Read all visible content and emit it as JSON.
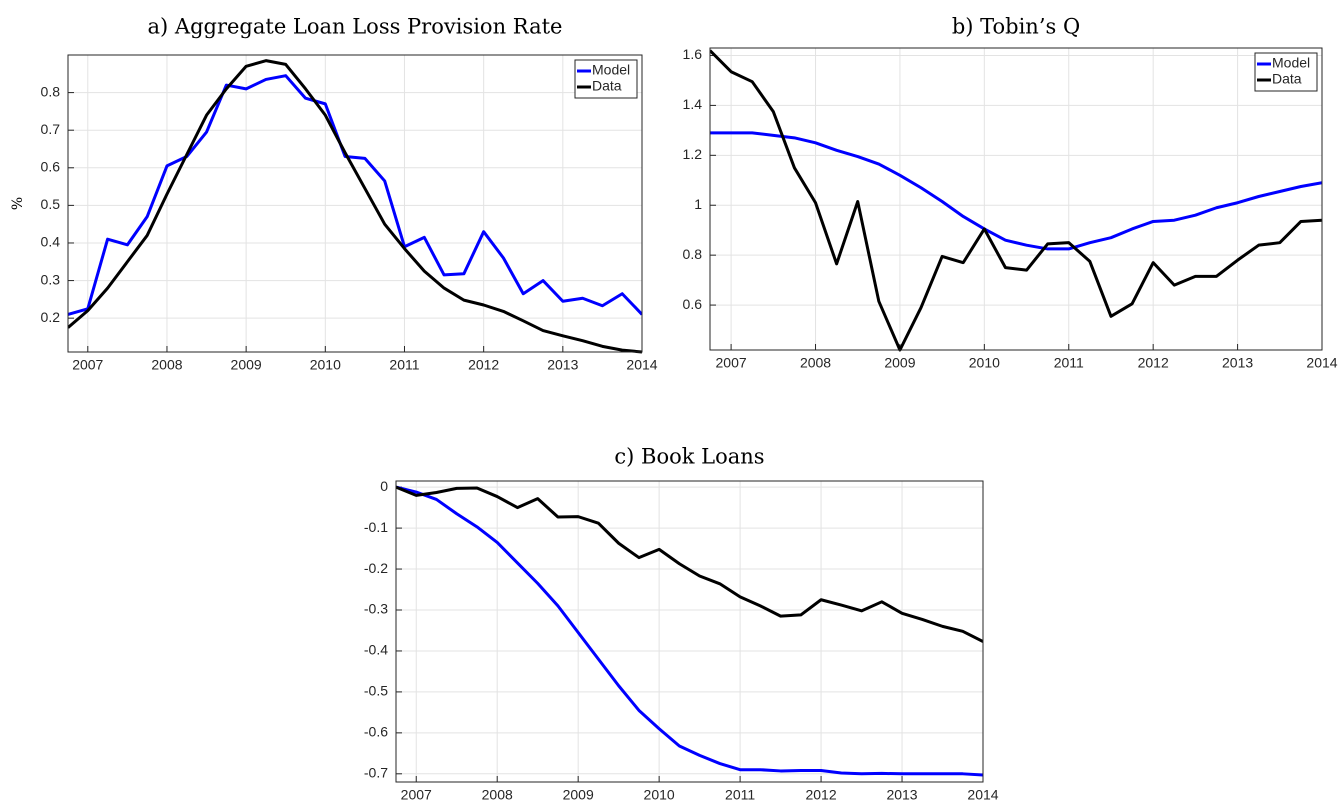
{
  "chart_data": [
    {
      "type": "line",
      "title": "a) Aggregate Loan Loss Provision Rate",
      "ylabel": "%",
      "x": [
        2006.75,
        2007,
        2007.25,
        2007.5,
        2007.75,
        2008,
        2008.25,
        2008.5,
        2008.75,
        2009,
        2009.25,
        2009.5,
        2009.75,
        2010,
        2010.25,
        2010.5,
        2010.75,
        2011,
        2011.25,
        2011.5,
        2011.75,
        2012,
        2012.25,
        2012.5,
        2012.75,
        2013,
        2013.25,
        2013.5,
        2013.75,
        2014
      ],
      "series": [
        {
          "name": "Model",
          "color": "#0000ff",
          "values": [
            0.21,
            0.225,
            0.41,
            0.395,
            0.47,
            0.605,
            0.63,
            0.695,
            0.82,
            0.81,
            0.835,
            0.845,
            0.785,
            0.77,
            0.63,
            0.625,
            0.565,
            0.39,
            0.415,
            0.315,
            0.318,
            0.43,
            0.36,
            0.265,
            0.3,
            0.245,
            0.253,
            0.233,
            0.265,
            0.21
          ]
        },
        {
          "name": "Data",
          "color": "#000000",
          "values": [
            0.175,
            0.22,
            0.28,
            0.35,
            0.42,
            0.53,
            0.635,
            0.74,
            0.81,
            0.87,
            0.885,
            0.875,
            0.81,
            0.74,
            0.64,
            0.545,
            0.45,
            0.385,
            0.325,
            0.28,
            0.248,
            0.235,
            0.218,
            0.193,
            0.167,
            0.153,
            0.14,
            0.125,
            0.115,
            0.11
          ]
        }
      ],
      "xlim": [
        2006.75,
        2014
      ],
      "xticks": [
        2007,
        2008,
        2009,
        2010,
        2011,
        2012,
        2013,
        2014
      ],
      "ylim": [
        0.11,
        0.9
      ],
      "yticks": [
        0.2,
        0.3,
        0.4,
        0.5,
        0.6,
        0.7,
        0.8
      ],
      "grid": true,
      "legend": "northeast"
    },
    {
      "type": "line",
      "title": "b) Tobin’s Q",
      "x": [
        2006.75,
        2007,
        2007.25,
        2007.5,
        2007.75,
        2008,
        2008.25,
        2008.5,
        2008.75,
        2009,
        2009.25,
        2009.5,
        2009.75,
        2010,
        2010.25,
        2010.5,
        2010.75,
        2011,
        2011.25,
        2011.5,
        2011.75,
        2012,
        2012.25,
        2012.5,
        2012.75,
        2013,
        2013.25,
        2013.5,
        2013.75,
        2014
      ],
      "series": [
        {
          "name": "Model",
          "color": "#0000ff",
          "values": [
            1.29,
            1.29,
            1.29,
            1.28,
            1.27,
            1.25,
            1.22,
            1.195,
            1.165,
            1.12,
            1.07,
            1.015,
            0.955,
            0.905,
            0.86,
            0.84,
            0.825,
            0.825,
            0.85,
            0.87,
            0.905,
            0.935,
            0.94,
            0.96,
            0.99,
            1.01,
            1.035,
            1.055,
            1.075,
            1.09
          ]
        },
        {
          "name": "Data",
          "color": "#000000",
          "values": [
            1.62,
            1.535,
            1.495,
            1.375,
            1.15,
            1.01,
            0.765,
            1.015,
            0.615,
            0.42,
            0.59,
            0.795,
            0.77,
            0.905,
            0.75,
            0.74,
            0.845,
            0.85,
            0.775,
            0.555,
            0.605,
            0.77,
            0.68,
            0.715,
            0.715,
            0.78,
            0.84,
            0.85,
            0.935,
            0.94
          ]
        }
      ],
      "xlim": [
        2006.75,
        2014
      ],
      "xticks": [
        2007,
        2008,
        2009,
        2010,
        2011,
        2012,
        2013,
        2014
      ],
      "ylim": [
        0.42,
        1.63
      ],
      "yticks": [
        0.6,
        0.8,
        1,
        1.2,
        1.4,
        1.6
      ],
      "grid": true,
      "legend": "northeast"
    },
    {
      "type": "line",
      "title": "c) Book Loans",
      "x": [
        2006.75,
        2007,
        2007.25,
        2007.5,
        2007.75,
        2008,
        2008.25,
        2008.5,
        2008.75,
        2009,
        2009.25,
        2009.5,
        2009.75,
        2010,
        2010.25,
        2010.5,
        2010.75,
        2011,
        2011.25,
        2011.5,
        2011.75,
        2012,
        2012.25,
        2012.5,
        2012.75,
        2013,
        2013.25,
        2013.5,
        2013.75,
        2014
      ],
      "series": [
        {
          "color": "#0000ff",
          "values": [
            0,
            -0.012,
            -0.03,
            -0.065,
            -0.097,
            -0.135,
            -0.185,
            -0.235,
            -0.29,
            -0.355,
            -0.42,
            -0.485,
            -0.545,
            -0.59,
            -0.632,
            -0.655,
            -0.675,
            -0.69,
            -0.69,
            -0.693,
            -0.692,
            -0.692,
            -0.698,
            -0.7,
            -0.699,
            -0.7,
            -0.7,
            -0.7,
            -0.7,
            -0.703
          ]
        },
        {
          "color": "#000000",
          "values": [
            0,
            -0.02,
            -0.013,
            -0.003,
            -0.002,
            -0.023,
            -0.05,
            -0.028,
            -0.073,
            -0.072,
            -0.088,
            -0.137,
            -0.172,
            -0.152,
            -0.187,
            -0.217,
            -0.236,
            -0.268,
            -0.29,
            -0.315,
            -0.312,
            -0.275,
            -0.288,
            -0.302,
            -0.28,
            -0.308,
            -0.323,
            -0.34,
            -0.352,
            -0.377
          ]
        }
      ],
      "xlim": [
        2006.75,
        2014
      ],
      "xticks": [
        2007,
        2008,
        2009,
        2010,
        2011,
        2012,
        2013,
        2014
      ],
      "ylim": [
        -0.72,
        0.015
      ],
      "yticks": [
        0,
        -0.1,
        -0.2,
        -0.3,
        -0.4,
        -0.5,
        -0.6,
        -0.7
      ],
      "grid": true
    }
  ]
}
